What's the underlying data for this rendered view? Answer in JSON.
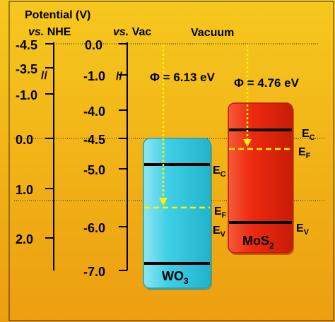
{
  "colors": {
    "background_top": "#f6c81e",
    "background_bottom": "#ec9e10",
    "wo3_fill": "#3fd0e6",
    "mos2_fill": "#ee2a10",
    "fermi_line": "#fff200",
    "arrow": "#fff200",
    "band_edge": "#000000"
  },
  "header": {
    "potential": "Potential (V)",
    "vs_italic": "vs.",
    "nhe_suffix": " NHE",
    "vac_suffix": " Vac",
    "vacuum": "Vacuum"
  },
  "nhe_axis": {
    "ticks": [
      "-4.5",
      "-3.5",
      "-1.0",
      "0.0",
      "1.0",
      "2.0"
    ],
    "break_symbol": "//"
  },
  "vac_axis": {
    "ticks": [
      "0.0",
      "-1.0",
      "-4.0",
      "-4.5",
      "-5.0",
      "-6.0",
      "-7.0"
    ],
    "break_symbol": "//"
  },
  "work_functions": {
    "wo3": "Φ = 6.13 eV",
    "mos2": "Φ = 4.76 eV"
  },
  "wo3": {
    "name_base": "WO",
    "name_sub": "3",
    "ec_base": "E",
    "ec_sub": "C",
    "ef_base": "E",
    "ef_sub": "F",
    "ev_base": "E",
    "ev_sub": "V"
  },
  "mos2": {
    "name_base": "MoS",
    "name_sub": "2",
    "ec_base": "E",
    "ec_sub": "C",
    "ef_base": "E",
    "ef_sub": "F",
    "ev_base": "E",
    "ev_sub": "V"
  }
}
